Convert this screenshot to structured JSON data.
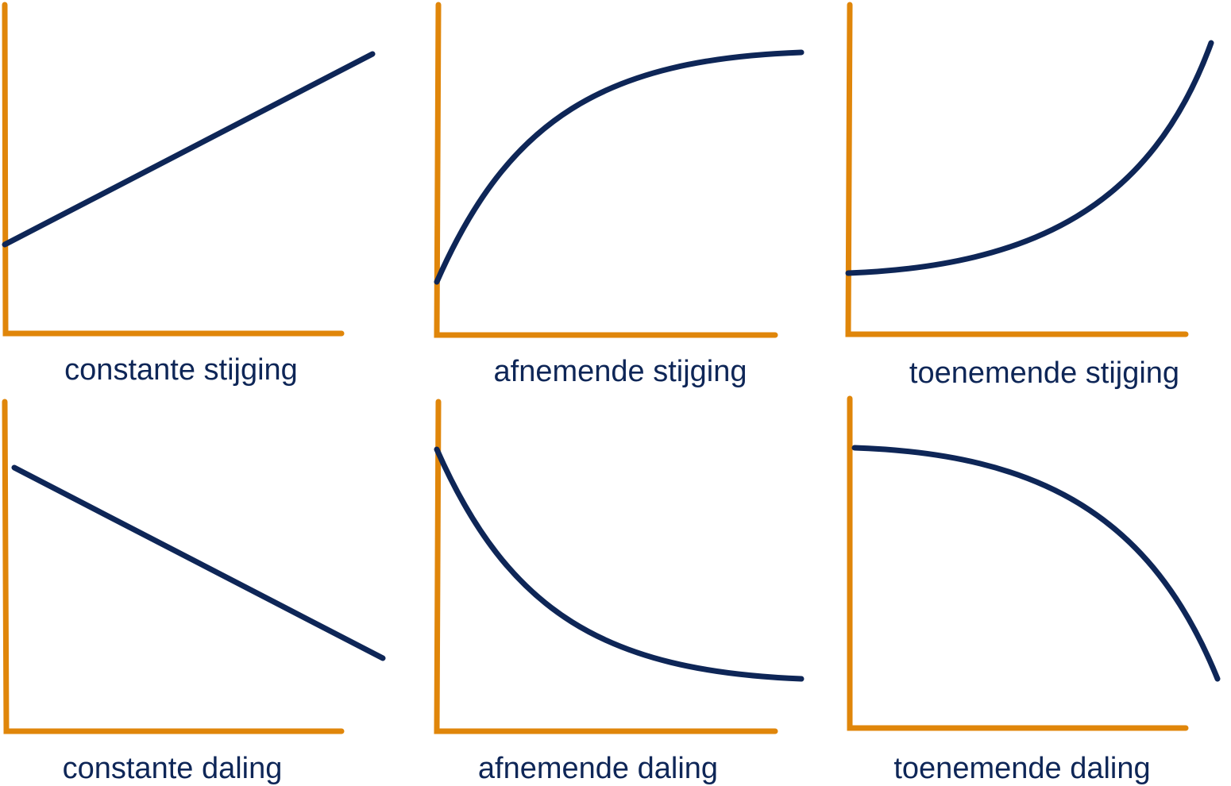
{
  "colors": {
    "axis": "#E0860A",
    "curve": "#0E2657",
    "background": "#FFFFFF"
  },
  "panels": [
    {
      "id": "constant-rise",
      "label": "constante stijging",
      "shape": "linear-up"
    },
    {
      "id": "decreasing-rise",
      "label": "afnemende stijging",
      "shape": "concave-up-rise"
    },
    {
      "id": "increasing-rise",
      "label": "toenemende stijging",
      "shape": "convex-rise"
    },
    {
      "id": "constant-fall",
      "label": "constante daling",
      "shape": "linear-down"
    },
    {
      "id": "decreasing-fall",
      "label": "afnemende daling",
      "shape": "convex-fall"
    },
    {
      "id": "increasing-fall",
      "label": "toenemende daling",
      "shape": "concave-fall"
    }
  ]
}
